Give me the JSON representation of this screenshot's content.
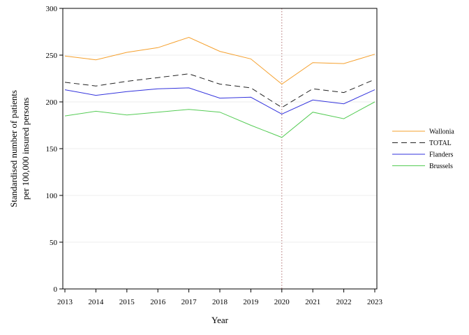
{
  "chart_data": {
    "type": "line",
    "xlabel": "Year",
    "ylabel_lines": [
      "Standardised number of patients",
      "per 100,000 insured persons"
    ],
    "ylim": [
      0,
      300
    ],
    "yticks": [
      0,
      50,
      100,
      150,
      200,
      250,
      300
    ],
    "x": [
      "2013",
      "2014",
      "2015",
      "2016",
      "2017",
      "2018",
      "2019",
      "2020",
      "2021",
      "2022",
      "2023"
    ],
    "grid": "horizontal",
    "reference_line_x": "2020",
    "legend_position": "right",
    "series": [
      {
        "name": "Wallonia",
        "color": "#f5a02d",
        "dash": "solid",
        "values": [
          249,
          245,
          253,
          258,
          269,
          254,
          246,
          219,
          242,
          241,
          251
        ]
      },
      {
        "name": "TOTAL",
        "color": "#222222",
        "dash": "dashed",
        "values": [
          221,
          217,
          222,
          226,
          230,
          219,
          215,
          194,
          214,
          210,
          224
        ]
      },
      {
        "name": "Flanders",
        "color": "#3333dd",
        "dash": "solid",
        "values": [
          213,
          207,
          211,
          214,
          215,
          204,
          205,
          187,
          202,
          198,
          213
        ]
      },
      {
        "name": "Brussels",
        "color": "#55cc55",
        "dash": "solid",
        "values": [
          185,
          190,
          186,
          189,
          192,
          189,
          175,
          162,
          189,
          182,
          200
        ]
      }
    ]
  }
}
